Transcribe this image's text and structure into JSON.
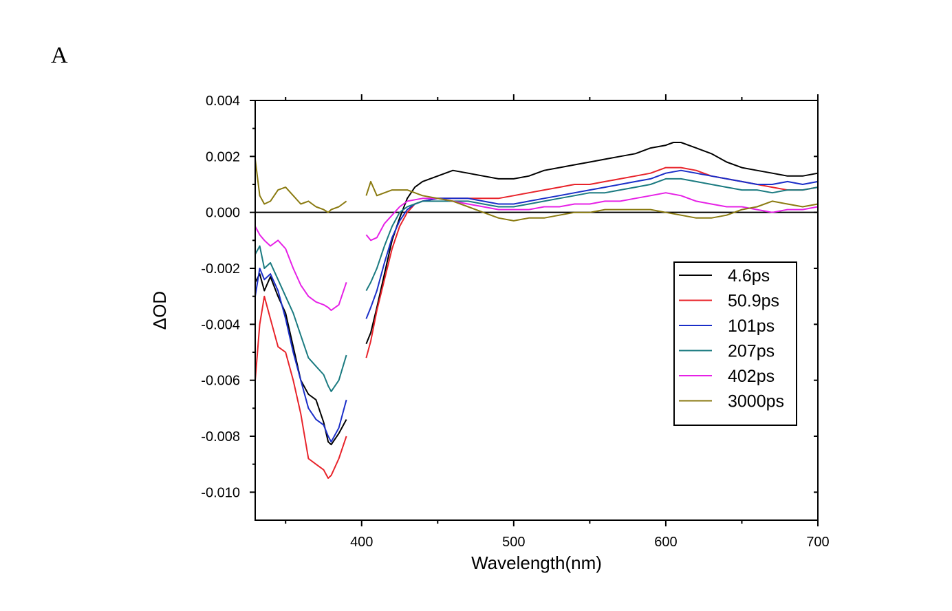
{
  "panel_label": "A",
  "chart_data": {
    "type": "line",
    "title": "",
    "xlabel": "Wavelength(nm)",
    "ylabel": "ΔOD",
    "xlim": [
      330,
      700
    ],
    "ylim": [
      -0.011,
      0.004
    ],
    "xticks": [
      400,
      500,
      600,
      700
    ],
    "xtick_labels": [
      "400",
      "500",
      "600",
      "700"
    ],
    "yticks": [
      0.004,
      0.002,
      0.0,
      -0.002,
      -0.004,
      -0.006,
      -0.008,
      -0.01
    ],
    "ytick_labels": [
      "0.004",
      "0.002",
      "0.000",
      "-0.002",
      "-0.004",
      "-0.006",
      "-0.008",
      "-0.010"
    ],
    "zero_line": 0.0,
    "legend_position": "center-right",
    "series": [
      {
        "name": "4.6ps",
        "color": "#000000",
        "x": [
          330,
          333,
          336,
          340,
          345,
          350,
          355,
          360,
          365,
          370,
          375,
          378,
          380,
          385,
          390,
          403,
          406,
          410,
          415,
          420,
          425,
          430,
          435,
          440,
          450,
          460,
          470,
          480,
          490,
          500,
          510,
          520,
          530,
          540,
          550,
          560,
          570,
          580,
          590,
          600,
          605,
          610,
          615,
          620,
          630,
          640,
          650,
          660,
          670,
          680,
          690,
          700
        ],
        "y": [
          -0.0025,
          -0.0022,
          -0.0028,
          -0.0023,
          -0.003,
          -0.0036,
          -0.0048,
          -0.006,
          -0.0065,
          -0.0067,
          -0.0075,
          -0.0082,
          -0.0083,
          -0.0079,
          -0.0074,
          -0.0047,
          -0.0043,
          -0.0034,
          -0.0022,
          -0.001,
          -0.0002,
          0.0005,
          0.0009,
          0.0011,
          0.0013,
          0.0015,
          0.0014,
          0.0013,
          0.0012,
          0.0012,
          0.0013,
          0.0015,
          0.0016,
          0.0017,
          0.0018,
          0.0019,
          0.002,
          0.0021,
          0.0023,
          0.0024,
          0.0025,
          0.0025,
          0.0024,
          0.0023,
          0.0021,
          0.0018,
          0.0016,
          0.0015,
          0.0014,
          0.0013,
          0.0013,
          0.0014
        ]
      },
      {
        "name": "50.9ps",
        "color": "#e8232a",
        "x": [
          330,
          333,
          336,
          340,
          345,
          350,
          355,
          360,
          365,
          370,
          375,
          378,
          380,
          385,
          390,
          403,
          406,
          410,
          415,
          420,
          425,
          430,
          435,
          440,
          450,
          460,
          470,
          480,
          490,
          500,
          510,
          520,
          530,
          540,
          550,
          560,
          570,
          580,
          590,
          600,
          610,
          620,
          630,
          640,
          650,
          660,
          670,
          680,
          690,
          700
        ],
        "y": [
          -0.006,
          -0.004,
          -0.003,
          -0.0038,
          -0.0048,
          -0.005,
          -0.006,
          -0.0072,
          -0.0088,
          -0.009,
          -0.0092,
          -0.0095,
          -0.0094,
          -0.0088,
          -0.008,
          -0.0052,
          -0.0046,
          -0.0035,
          -0.0024,
          -0.0013,
          -0.0005,
          0.0,
          0.0003,
          0.0004,
          0.0005,
          0.0005,
          0.0005,
          0.0005,
          0.0005,
          0.0006,
          0.0007,
          0.0008,
          0.0009,
          0.001,
          0.001,
          0.0011,
          0.0012,
          0.0013,
          0.0014,
          0.0016,
          0.0016,
          0.0015,
          0.0013,
          0.0012,
          0.0011,
          0.001,
          0.0009,
          0.0008,
          0.0008,
          0.0009
        ]
      },
      {
        "name": "101ps",
        "color": "#1a2ec8",
        "x": [
          330,
          333,
          336,
          340,
          345,
          350,
          355,
          360,
          365,
          370,
          375,
          378,
          380,
          385,
          390,
          403,
          406,
          410,
          415,
          420,
          425,
          430,
          435,
          440,
          450,
          460,
          470,
          480,
          490,
          500,
          510,
          520,
          530,
          540,
          550,
          560,
          570,
          580,
          590,
          600,
          610,
          620,
          630,
          640,
          650,
          660,
          670,
          680,
          690,
          700
        ],
        "y": [
          -0.003,
          -0.002,
          -0.0024,
          -0.0022,
          -0.0028,
          -0.0038,
          -0.005,
          -0.006,
          -0.007,
          -0.0074,
          -0.0076,
          -0.008,
          -0.0082,
          -0.0077,
          -0.0067,
          -0.0038,
          -0.0034,
          -0.0028,
          -0.0018,
          -0.0009,
          -0.0003,
          0.0001,
          0.0003,
          0.0004,
          0.0005,
          0.0005,
          0.0005,
          0.0004,
          0.0003,
          0.0003,
          0.0004,
          0.0005,
          0.0006,
          0.0007,
          0.0008,
          0.0009,
          0.001,
          0.0011,
          0.0012,
          0.0014,
          0.0015,
          0.0014,
          0.0013,
          0.0012,
          0.0011,
          0.001,
          0.001,
          0.0011,
          0.001,
          0.0011
        ]
      },
      {
        "name": "207ps",
        "color": "#1a7a80",
        "x": [
          330,
          333,
          336,
          340,
          345,
          350,
          355,
          360,
          365,
          370,
          375,
          378,
          380,
          385,
          390,
          403,
          406,
          410,
          415,
          420,
          425,
          430,
          435,
          440,
          450,
          460,
          470,
          480,
          490,
          500,
          510,
          520,
          530,
          540,
          550,
          560,
          570,
          580,
          590,
          600,
          610,
          620,
          630,
          640,
          650,
          660,
          670,
          680,
          690,
          700
        ],
        "y": [
          -0.0015,
          -0.0012,
          -0.002,
          -0.0018,
          -0.0024,
          -0.003,
          -0.0036,
          -0.0044,
          -0.0052,
          -0.0055,
          -0.0058,
          -0.0062,
          -0.0064,
          -0.006,
          -0.0051,
          -0.0028,
          -0.0025,
          -0.002,
          -0.0012,
          -0.0005,
          0.0,
          0.0002,
          0.0003,
          0.0004,
          0.0004,
          0.0004,
          0.0004,
          0.0003,
          0.0002,
          0.0002,
          0.0003,
          0.0004,
          0.0005,
          0.0006,
          0.0007,
          0.0007,
          0.0008,
          0.0009,
          0.001,
          0.0012,
          0.0012,
          0.0011,
          0.001,
          0.0009,
          0.0008,
          0.0008,
          0.0007,
          0.0008,
          0.0008,
          0.0009
        ]
      },
      {
        "name": "402ps",
        "color": "#e620e6",
        "x": [
          330,
          333,
          336,
          340,
          345,
          350,
          355,
          360,
          365,
          370,
          375,
          378,
          380,
          385,
          390,
          403,
          406,
          410,
          415,
          420,
          425,
          430,
          440,
          450,
          460,
          470,
          480,
          490,
          500,
          510,
          520,
          530,
          540,
          550,
          560,
          570,
          580,
          590,
          600,
          610,
          620,
          630,
          640,
          650,
          660,
          670,
          680,
          690,
          700
        ],
        "y": [
          -0.0005,
          -0.0008,
          -0.001,
          -0.0012,
          -0.001,
          -0.0013,
          -0.002,
          -0.0026,
          -0.003,
          -0.0032,
          -0.0033,
          -0.0034,
          -0.0035,
          -0.0033,
          -0.0025,
          -0.0008,
          -0.001,
          -0.0009,
          -0.0004,
          -0.0001,
          0.0002,
          0.0004,
          0.0005,
          0.0005,
          0.0004,
          0.0003,
          0.0002,
          0.0001,
          0.0001,
          0.0001,
          0.0002,
          0.0002,
          0.0003,
          0.0003,
          0.0004,
          0.0004,
          0.0005,
          0.0006,
          0.0007,
          0.0006,
          0.0004,
          0.0003,
          0.0002,
          0.0002,
          0.0001,
          0.0,
          0.0001,
          0.0001,
          0.0002
        ]
      },
      {
        "name": "3000ps",
        "color": "#8a7a10",
        "x": [
          330,
          333,
          336,
          340,
          345,
          350,
          355,
          360,
          365,
          370,
          375,
          378,
          380,
          385,
          390,
          403,
          406,
          410,
          415,
          420,
          425,
          430,
          440,
          450,
          460,
          470,
          480,
          490,
          500,
          510,
          520,
          530,
          540,
          550,
          560,
          570,
          580,
          590,
          600,
          610,
          620,
          630,
          640,
          650,
          660,
          670,
          680,
          690,
          700
        ],
        "y": [
          0.0019,
          0.0006,
          0.0003,
          0.0004,
          0.0008,
          0.0009,
          0.0006,
          0.0003,
          0.0004,
          0.0002,
          0.0001,
          0.0,
          0.0001,
          0.0002,
          0.0004,
          0.0006,
          0.0011,
          0.0006,
          0.0007,
          0.0008,
          0.0008,
          0.0008,
          0.0006,
          0.0005,
          0.0004,
          0.0002,
          0.0,
          -0.0002,
          -0.0003,
          -0.0002,
          -0.0002,
          -0.0001,
          0.0,
          0.0,
          0.0001,
          0.0001,
          0.0001,
          0.0001,
          0.0,
          -0.0001,
          -0.0002,
          -0.0002,
          -0.0001,
          0.0001,
          0.0002,
          0.0004,
          0.0003,
          0.0002,
          0.0003
        ]
      }
    ]
  }
}
